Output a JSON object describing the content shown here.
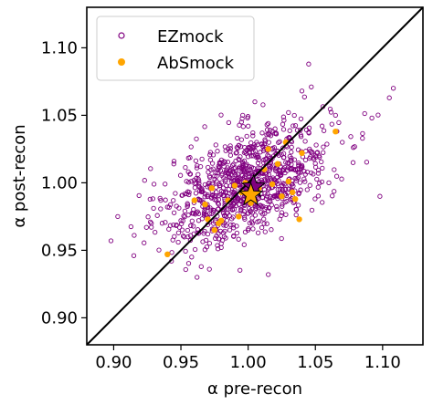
{
  "chart_data": {
    "type": "scatter",
    "title": "",
    "xlabel": "α pre-recon",
    "ylabel": "α post-recon",
    "xlim": [
      0.88,
      1.13
    ],
    "ylim": [
      0.88,
      1.13
    ],
    "xticks": [
      0.9,
      0.95,
      1.0,
      1.05,
      1.1
    ],
    "xtick_labels": [
      "0.90",
      "0.95",
      "1.00",
      "1.05",
      "1.10"
    ],
    "yticks": [
      0.9,
      0.95,
      1.0,
      1.05,
      1.1
    ],
    "ytick_labels": [
      "0.90",
      "0.95",
      "1.00",
      "1.05",
      "1.10"
    ],
    "grid": false,
    "legend_position": "top-left",
    "reference_line": {
      "x": [
        0.88,
        1.13
      ],
      "y": [
        0.88,
        1.13
      ],
      "color": "#000000"
    },
    "series": [
      {
        "name": "EZmock",
        "marker": "open-circle",
        "color": "#800080",
        "count": 1000,
        "mean": [
          1.0,
          1.0
        ],
        "std": [
          0.03,
          0.022
        ],
        "correlation": 0.5,
        "points": [
          [
            0.898,
            0.957
          ],
          [
            0.903,
            0.975
          ],
          [
            0.915,
            0.946
          ],
          [
            0.928,
            0.97
          ],
          [
            0.93,
            0.999
          ],
          [
            0.94,
            0.982
          ],
          [
            0.943,
            0.942
          ],
          [
            0.948,
            0.956
          ],
          [
            0.95,
            0.972
          ],
          [
            0.958,
            0.945
          ],
          [
            0.963,
            0.988
          ],
          [
            0.97,
            0.962
          ],
          [
            0.975,
            1.005
          ],
          [
            0.98,
            0.952
          ],
          [
            0.985,
            1.025
          ],
          [
            0.99,
            0.985
          ],
          [
            0.995,
            1.045
          ],
          [
            1.0,
            0.965
          ],
          [
            1.005,
            1.06
          ],
          [
            1.01,
            1.002
          ],
          [
            1.015,
            0.932
          ],
          [
            1.02,
            1.04
          ],
          [
            1.025,
            0.978
          ],
          [
            1.03,
            1.052
          ],
          [
            1.035,
            1.01
          ],
          [
            1.04,
            1.068
          ],
          [
            1.045,
            1.088
          ],
          [
            1.05,
            1.02
          ],
          [
            1.055,
            1.042
          ],
          [
            1.06,
            1.0
          ],
          [
            1.065,
            1.05
          ],
          [
            1.07,
            1.03
          ],
          [
            1.078,
            1.015
          ],
          [
            1.085,
            1.033
          ],
          [
            1.092,
            1.048
          ],
          [
            1.098,
            0.99
          ],
          [
            1.105,
            1.063
          ],
          [
            1.108,
            1.07
          ],
          [
            1.047,
            1.071
          ],
          [
            0.962,
            0.93
          ]
        ]
      },
      {
        "name": "AbSmock",
        "marker": "filled-circle",
        "color": "#FFA500",
        "points": [
          [
            0.94,
            0.947
          ],
          [
            0.96,
            0.987
          ],
          [
            0.968,
            0.984
          ],
          [
            0.97,
            0.973
          ],
          [
            0.973,
            0.996
          ],
          [
            0.975,
            0.965
          ],
          [
            0.978,
            0.97
          ],
          [
            0.98,
            0.972
          ],
          [
            0.985,
            0.987
          ],
          [
            0.99,
            0.998
          ],
          [
            0.993,
            0.975
          ],
          [
            0.995,
            0.993
          ],
          [
            0.998,
            1.0
          ],
          [
            1.002,
            0.985
          ],
          [
            1.008,
            0.996
          ],
          [
            1.012,
            1.01
          ],
          [
            1.015,
            1.025
          ],
          [
            1.018,
            0.999
          ],
          [
            1.022,
            1.014
          ],
          [
            1.025,
            0.99
          ],
          [
            1.028,
            1.03
          ],
          [
            1.03,
            1.001
          ],
          [
            1.033,
            0.993
          ],
          [
            1.035,
            0.988
          ],
          [
            1.038,
            0.973
          ],
          [
            1.04,
            1.022
          ],
          [
            1.065,
            1.038
          ]
        ]
      }
    ],
    "mean_markers": [
      {
        "x": 1.004,
        "y": 0.997,
        "fill": "#800080",
        "marker": "star"
      },
      {
        "x": 1.002,
        "y": 0.991,
        "fill": "#FFA500",
        "marker": "star"
      }
    ]
  }
}
